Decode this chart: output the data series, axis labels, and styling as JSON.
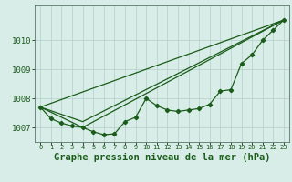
{
  "bg_color": "#d8ede8",
  "grid_color": "#b0cfc8",
  "line_color": "#1a5c1a",
  "xlabel": "Graphe pression niveau de la mer (hPa)",
  "xlim": [
    -0.5,
    23.5
  ],
  "ylim": [
    1006.5,
    1011.2
  ],
  "yticks": [
    1007,
    1008,
    1009,
    1010
  ],
  "xticks": [
    0,
    1,
    2,
    3,
    4,
    5,
    6,
    7,
    8,
    9,
    10,
    11,
    12,
    13,
    14,
    15,
    16,
    17,
    18,
    19,
    20,
    21,
    22,
    23
  ],
  "series1_x": [
    0,
    1,
    2,
    3,
    4,
    5,
    6,
    7,
    8,
    9,
    10,
    11,
    12,
    13,
    14,
    15,
    16,
    17,
    18,
    19,
    20,
    21,
    22,
    23
  ],
  "series1_y": [
    1007.7,
    1007.3,
    1007.15,
    1007.05,
    1007.0,
    1006.85,
    1006.75,
    1006.78,
    1007.2,
    1007.35,
    1008.0,
    1007.75,
    1007.6,
    1007.55,
    1007.6,
    1007.65,
    1007.8,
    1008.25,
    1008.3,
    1009.2,
    1009.5,
    1010.0,
    1010.35,
    1010.7
  ],
  "series2_x": [
    0,
    4,
    23
  ],
  "series2_y": [
    1007.7,
    1007.0,
    1010.7
  ],
  "series3_x": [
    0,
    4,
    23
  ],
  "series3_y": [
    1007.7,
    1007.2,
    1010.7
  ],
  "series4_x": [
    0,
    23
  ],
  "series4_y": [
    1007.7,
    1010.7
  ],
  "xlabel_fontsize": 7.5,
  "tick_fontsize": 6.5
}
